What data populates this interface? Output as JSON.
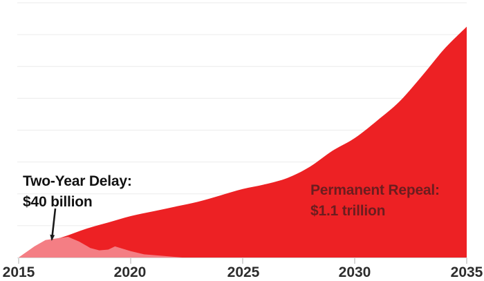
{
  "page": {
    "background": "#ffffff"
  },
  "annotations": {
    "delay_label_line1": "Two-Year Delay:",
    "delay_label_line2": "$40 billion",
    "delay_label_color": "#121212",
    "repeal_label_line1": "Permanent Repeal:",
    "repeal_label_line2": "$1.1 trillion",
    "repeal_label_color": "#6b1d1f",
    "arrow_color": "#1a1a1a"
  },
  "axis": {
    "gridline_color": "#ebebeb",
    "baseline_color": "#d9d9d9",
    "tick_color": "#c9c9c9",
    "tick_label_color": "#2d2d2d"
  },
  "chart_data": {
    "type": "area",
    "title": "",
    "xlabel": "",
    "ylabel": "",
    "x_tick_labels": [
      "2015",
      "2020",
      "2025",
      "2030",
      "2035"
    ],
    "x_ticks": [
      2015,
      2020,
      2025,
      2030,
      2035
    ],
    "xlim": [
      2015,
      2035
    ],
    "ylim": [
      0,
      160
    ],
    "gridline_interval": 20,
    "grid": "horizontal",
    "legend_position": "none (direct area annotations)",
    "y_unit_estimated": "$ billions per year (y-axis unlabeled; scale inferred from gridlines and annotated totals)",
    "series": [
      {
        "name": "Permanent Repeal",
        "total_label": "$1.1 trillion",
        "color": "#ed2124",
        "smooth": true,
        "points": [
          [
            2015,
            0
          ],
          [
            2016,
            9
          ],
          [
            2017,
            13
          ],
          [
            2018,
            18
          ],
          [
            2019,
            22
          ],
          [
            2020,
            26
          ],
          [
            2021,
            29
          ],
          [
            2022,
            32
          ],
          [
            2023,
            35
          ],
          [
            2024,
            39
          ],
          [
            2025,
            43
          ],
          [
            2026,
            46
          ],
          [
            2027,
            50
          ],
          [
            2028,
            57
          ],
          [
            2029,
            67
          ],
          [
            2030,
            75
          ],
          [
            2031,
            86
          ],
          [
            2032,
            98
          ],
          [
            2033,
            114
          ],
          [
            2034,
            131
          ],
          [
            2035,
            145
          ]
        ]
      },
      {
        "name": "Two-Year Delay",
        "total_label": "$40 billion",
        "color": "#f47e84",
        "smooth": false,
        "points": [
          [
            2015,
            0
          ],
          [
            2015.7,
            7
          ],
          [
            2016.2,
            11
          ],
          [
            2016.7,
            12
          ],
          [
            2017.2,
            13
          ],
          [
            2017.7,
            10
          ],
          [
            2018.2,
            6
          ],
          [
            2018.6,
            4.5
          ],
          [
            2019,
            5
          ],
          [
            2019.3,
            7
          ],
          [
            2020,
            4
          ],
          [
            2020.6,
            2
          ],
          [
            2021.5,
            1
          ],
          [
            2022.3,
            0
          ]
        ]
      }
    ]
  }
}
